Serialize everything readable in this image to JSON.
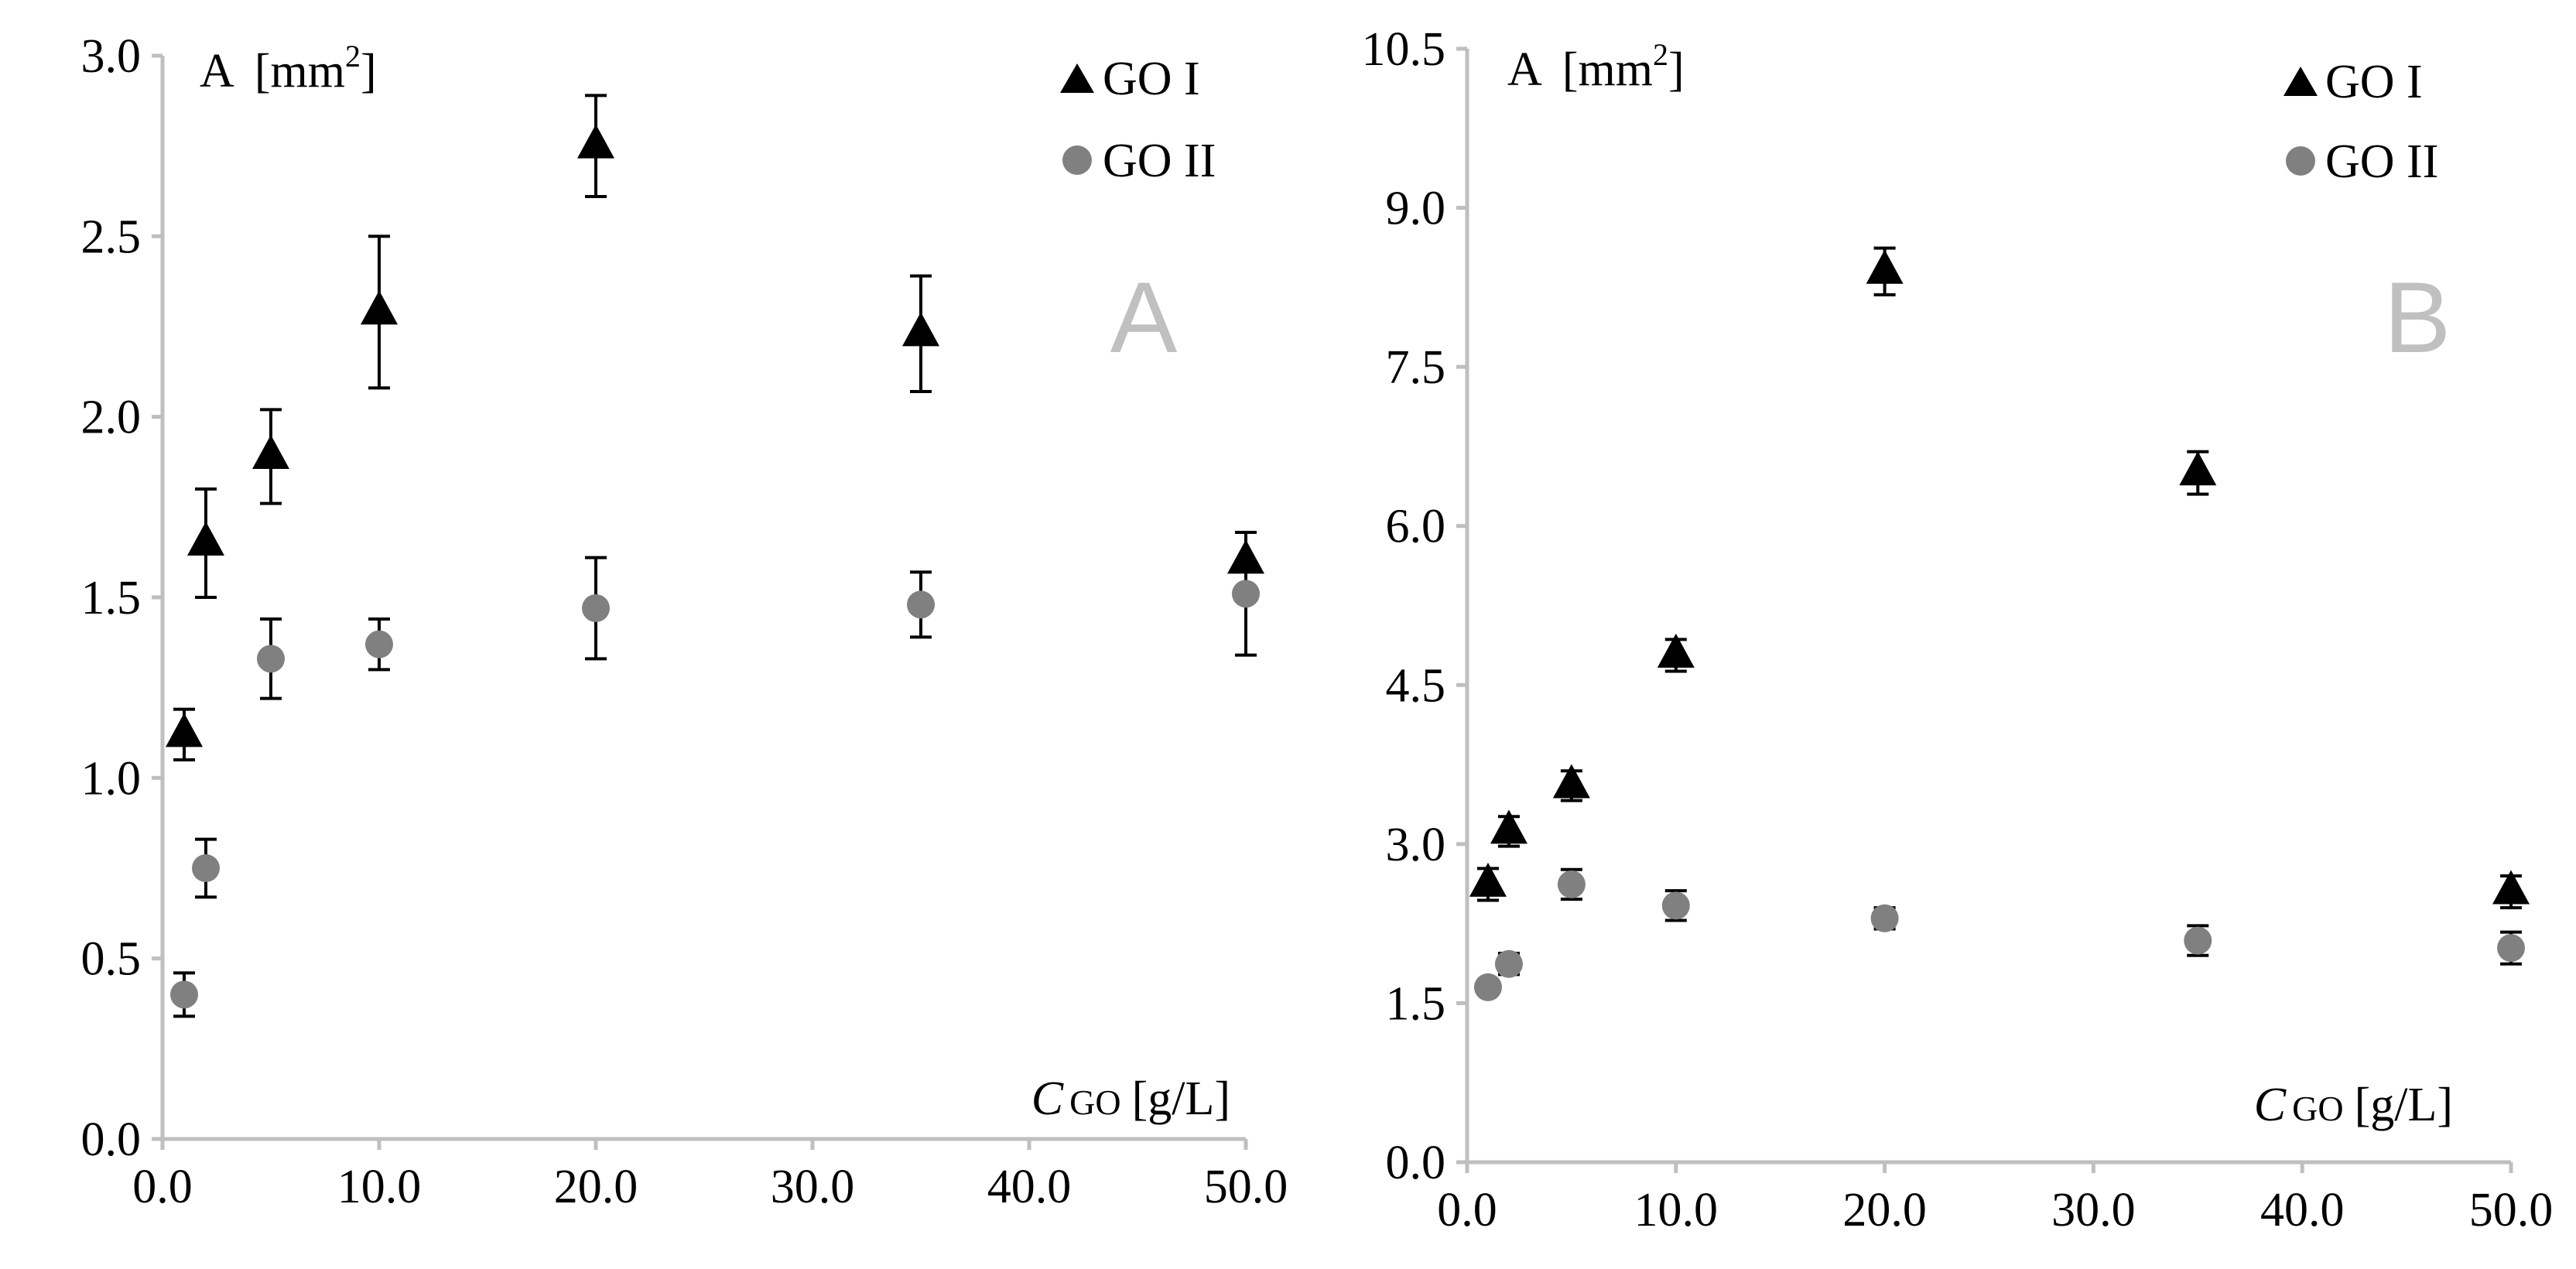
{
  "colors": {
    "go1": "#000000",
    "go2": "#808080",
    "axis": "#bfbfbf",
    "panel_letter": "#c0c0c0"
  },
  "chart_data": [
    {
      "type": "scatter",
      "panel_label": "A",
      "ylabel": "A",
      "ylabel_unit": "[mm",
      "ylabel_sup": "2",
      "ylabel_close": "]",
      "xlabel_italic": "C",
      "xlabel_sub": "GO",
      "xlabel_unit": "[g/L]",
      "xlim": [
        0,
        50
      ],
      "ylim": [
        0,
        3
      ],
      "x_ticks": [
        0,
        10,
        20,
        30,
        40,
        50
      ],
      "x_tick_labels": [
        "0.0",
        "10.0",
        "20.0",
        "30.0",
        "40.0",
        "50.0"
      ],
      "y_ticks": [
        0,
        0.5,
        1,
        1.5,
        2,
        2.5,
        3
      ],
      "y_tick_labels": [
        "0.0",
        "0.5",
        "1.0",
        "1.5",
        "2.0",
        "2.5",
        "3.0"
      ],
      "legend": "top-right",
      "grid": false,
      "series": [
        {
          "name": "GO I",
          "marker": "triangle",
          "x": [
            1,
            2,
            5,
            10,
            20,
            35,
            50
          ],
          "y": [
            1.12,
            1.65,
            1.89,
            2.29,
            2.75,
            2.23,
            1.6
          ],
          "err": [
            0.07,
            0.15,
            0.13,
            0.21,
            0.14,
            0.16,
            0.08
          ]
        },
        {
          "name": "GO II",
          "marker": "circle",
          "x": [
            1,
            2,
            5,
            10,
            20,
            35,
            50
          ],
          "y": [
            0.4,
            0.75,
            1.33,
            1.37,
            1.47,
            1.48,
            1.51
          ],
          "err": [
            0.06,
            0.08,
            0.11,
            0.07,
            0.14,
            0.09,
            0.17
          ]
        }
      ]
    },
    {
      "type": "scatter",
      "panel_label": "B",
      "ylabel": "A",
      "ylabel_unit": "[mm",
      "ylabel_sup": "2",
      "ylabel_close": "]",
      "xlabel_italic": "C",
      "xlabel_sub": "GO",
      "xlabel_unit": "[g/L]",
      "xlim": [
        0,
        50
      ],
      "ylim": [
        0,
        10.5
      ],
      "x_ticks": [
        0,
        10,
        20,
        30,
        40,
        50
      ],
      "x_tick_labels": [
        "0.0",
        "10.0",
        "20.0",
        "30.0",
        "40.0",
        "50.0"
      ],
      "y_ticks": [
        0,
        1.5,
        3,
        4.5,
        6,
        7.5,
        9,
        10.5
      ],
      "y_tick_labels": [
        "0.0",
        "1.5",
        "3.0",
        "4.5",
        "6.0",
        "7.5",
        "9.0",
        "10.5"
      ],
      "legend": "top-right",
      "grid": false,
      "series": [
        {
          "name": "GO I",
          "marker": "triangle",
          "x": [
            1,
            2,
            5,
            10,
            20,
            35,
            50
          ],
          "y": [
            2.62,
            3.12,
            3.55,
            4.78,
            8.4,
            6.5,
            2.55
          ],
          "err": [
            0.15,
            0.14,
            0.14,
            0.15,
            0.22,
            0.2,
            0.15
          ]
        },
        {
          "name": "GO II",
          "marker": "circle",
          "x": [
            1,
            2,
            5,
            10,
            20,
            35,
            50
          ],
          "y": [
            1.65,
            1.87,
            2.62,
            2.42,
            2.3,
            2.09,
            2.02
          ],
          "err": [
            0.07,
            0.1,
            0.14,
            0.14,
            0.1,
            0.14,
            0.15
          ]
        }
      ]
    }
  ]
}
